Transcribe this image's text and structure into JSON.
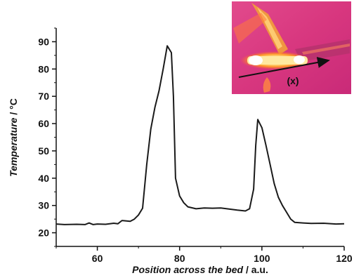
{
  "chart_data": {
    "type": "line",
    "xlabel_italic": "Position across the bed",
    "xlabel_unit": " / a.u.",
    "ylabel_italic": "Temperature",
    "ylabel_unit": " / °C",
    "xlim": [
      50,
      120
    ],
    "ylim": [
      15,
      95
    ],
    "xticks": [
      60,
      80,
      100,
      120
    ],
    "yticks": [
      20,
      30,
      40,
      50,
      60,
      70,
      80,
      90
    ],
    "grid": false,
    "line_color": "#1a1a1a",
    "series": [
      {
        "x": [
          50,
          52,
          55,
          57,
          58,
          59,
          60,
          62,
          64,
          65,
          66,
          68,
          69,
          70,
          71,
          72,
          73,
          74,
          75,
          76,
          77,
          78,
          78.5,
          79,
          80,
          81,
          82,
          84,
          86,
          88,
          90,
          92,
          94,
          96,
          97,
          98,
          98.5,
          99,
          99.5,
          100,
          101,
          102,
          103,
          104,
          105,
          106,
          107,
          108,
          110,
          112,
          115,
          118,
          120
        ],
        "y": [
          23.2,
          23.0,
          23.1,
          23.0,
          23.6,
          23.0,
          23.2,
          23.1,
          23.5,
          23.3,
          24.5,
          24.2,
          25.0,
          26.5,
          29.0,
          45.0,
          58.0,
          66.0,
          72.0,
          80.0,
          88.5,
          86.0,
          70.0,
          40.0,
          33.5,
          31.0,
          29.5,
          28.8,
          29.1,
          29.0,
          29.1,
          28.7,
          28.3,
          28.0,
          28.8,
          36.0,
          52.0,
          61.5,
          60.0,
          58.5,
          52.0,
          45.0,
          38.0,
          33.0,
          30.0,
          27.5,
          25.0,
          23.8,
          23.6,
          23.4,
          23.5,
          23.2,
          23.3
        ]
      }
    ]
  },
  "inset": {
    "annotation": "(x)",
    "arrow_color": "#111111"
  }
}
